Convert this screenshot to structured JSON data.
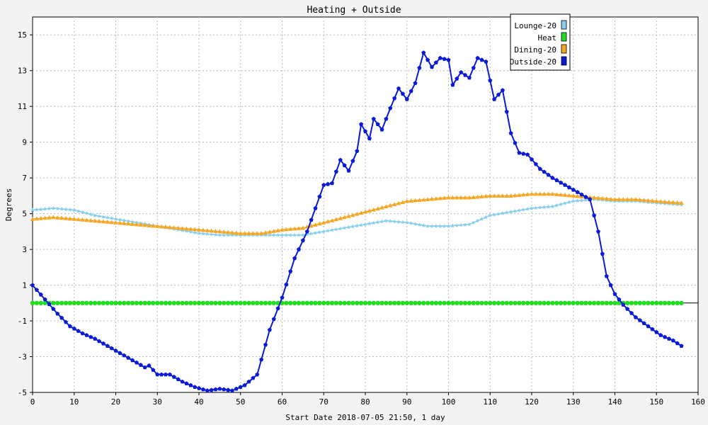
{
  "chart_data": {
    "type": "line",
    "title": "Heating + Outside",
    "xlabel": "Start Date 2018-07-05 21:50, 1 day",
    "ylabel": "Degrees",
    "xlim": [
      0,
      160
    ],
    "ylim": [
      -5,
      16
    ],
    "x_ticks": [
      0,
      10,
      20,
      30,
      40,
      50,
      60,
      70,
      80,
      90,
      100,
      110,
      120,
      130,
      140,
      150,
      160
    ],
    "y_ticks": [
      -5,
      -3,
      -1,
      1,
      3,
      5,
      7,
      9,
      11,
      13,
      15
    ],
    "grid": true,
    "legend_position": "top-right",
    "series": [
      {
        "name": "Lounge-20",
        "color": "#87ceeb",
        "marker": "star",
        "x": [
          0,
          5,
          10,
          15,
          20,
          25,
          30,
          35,
          40,
          45,
          50,
          55,
          60,
          65,
          70,
          75,
          80,
          85,
          90,
          95,
          100,
          105,
          110,
          115,
          120,
          125,
          130,
          135,
          140,
          145,
          150,
          156
        ],
        "y": [
          5.2,
          5.3,
          5.2,
          4.9,
          4.7,
          4.5,
          4.3,
          4.1,
          3.9,
          3.8,
          3.8,
          3.8,
          3.8,
          3.8,
          4.0,
          4.2,
          4.4,
          4.6,
          4.5,
          4.3,
          4.3,
          4.4,
          4.9,
          5.1,
          5.3,
          5.4,
          5.7,
          5.8,
          5.7,
          5.7,
          5.6,
          5.5
        ]
      },
      {
        "name": "Heat",
        "color": "#22dd22",
        "marker": "circle",
        "x": [
          0,
          10,
          20,
          30,
          40,
          50,
          60,
          70,
          80,
          90,
          100,
          110,
          120,
          130,
          140,
          150,
          156
        ],
        "y": [
          0,
          0,
          0,
          0,
          0,
          0,
          0,
          0,
          0,
          0,
          0,
          0,
          0,
          0,
          0,
          0,
          0
        ]
      },
      {
        "name": "Dining-20",
        "color": "#f5a623",
        "marker": "triangle",
        "x": [
          0,
          5,
          10,
          15,
          20,
          25,
          30,
          35,
          40,
          45,
          50,
          55,
          60,
          65,
          70,
          75,
          80,
          85,
          90,
          95,
          100,
          105,
          110,
          115,
          120,
          125,
          130,
          135,
          140,
          145,
          150,
          156
        ],
        "y": [
          4.7,
          4.8,
          4.7,
          4.6,
          4.5,
          4.4,
          4.3,
          4.2,
          4.1,
          4.0,
          3.9,
          3.9,
          4.1,
          4.2,
          4.5,
          4.8,
          5.1,
          5.4,
          5.7,
          5.8,
          5.9,
          5.9,
          6.0,
          6.0,
          6.1,
          6.1,
          6.0,
          5.9,
          5.8,
          5.8,
          5.7,
          5.6
        ]
      },
      {
        "name": "Outside-20",
        "color": "#0a1ad6",
        "marker": "pentagon",
        "x": [
          0,
          3,
          6,
          9,
          12,
          15,
          18,
          21,
          24,
          27,
          28,
          30,
          33,
          36,
          39,
          42,
          45,
          48,
          51,
          54,
          57,
          60,
          63,
          66,
          68,
          70,
          72,
          74,
          76,
          78,
          79,
          81,
          82,
          84,
          86,
          88,
          90,
          92,
          94,
          96,
          98,
          100,
          101,
          103,
          105,
          107,
          109,
          111,
          113,
          115,
          117,
          119,
          122,
          125,
          128,
          131,
          134,
          136,
          138,
          140,
          142,
          145,
          148,
          151,
          154,
          156
        ],
        "y": [
          1.0,
          0.2,
          -0.6,
          -1.3,
          -1.7,
          -2.0,
          -2.4,
          -2.8,
          -3.2,
          -3.6,
          -3.5,
          -4.0,
          -4.0,
          -4.4,
          -4.7,
          -4.9,
          -4.8,
          -4.9,
          -4.6,
          -4.0,
          -1.5,
          0.3,
          2.5,
          4.0,
          5.3,
          6.6,
          6.7,
          8.0,
          7.4,
          8.5,
          10.0,
          9.2,
          10.3,
          9.7,
          10.9,
          12.0,
          11.4,
          12.3,
          14.0,
          13.2,
          13.7,
          13.6,
          12.2,
          12.9,
          12.6,
          13.7,
          13.5,
          11.4,
          11.9,
          9.5,
          8.4,
          8.3,
          7.5,
          7.0,
          6.6,
          6.2,
          5.8,
          4.0,
          1.5,
          0.5,
          -0.1,
          -0.8,
          -1.3,
          -1.8,
          -2.1,
          -2.4
        ]
      }
    ]
  }
}
